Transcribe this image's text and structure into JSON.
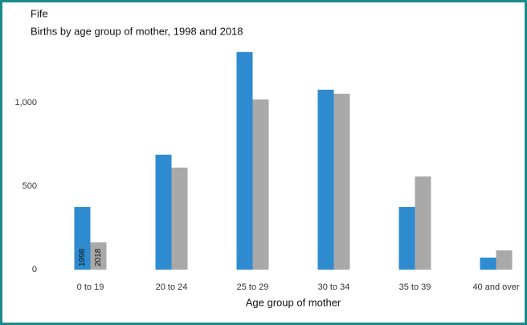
{
  "chart_data": {
    "type": "bar",
    "title": "Fife",
    "subtitle": "Births by age group of mother, 1998 and 2018",
    "x_label": "Age group of mother",
    "categories": [
      "0 to 19",
      "20 to 24",
      "25 to 29",
      "30 to 34",
      "35 to 39",
      "40 and over"
    ],
    "series": [
      {
        "name": "1998",
        "color": "#2e8bd0",
        "values": [
          375,
          688,
          1303,
          1077,
          375,
          72
        ]
      },
      {
        "name": "2018",
        "color": "#a9a9a9",
        "values": [
          163,
          611,
          1019,
          1053,
          558,
          115
        ]
      }
    ],
    "ylim": [
      0,
      1350
    ],
    "yticks": [
      0,
      500,
      {
        "value": 1000,
        "label": "1,000"
      }
    ],
    "grid": false
  }
}
